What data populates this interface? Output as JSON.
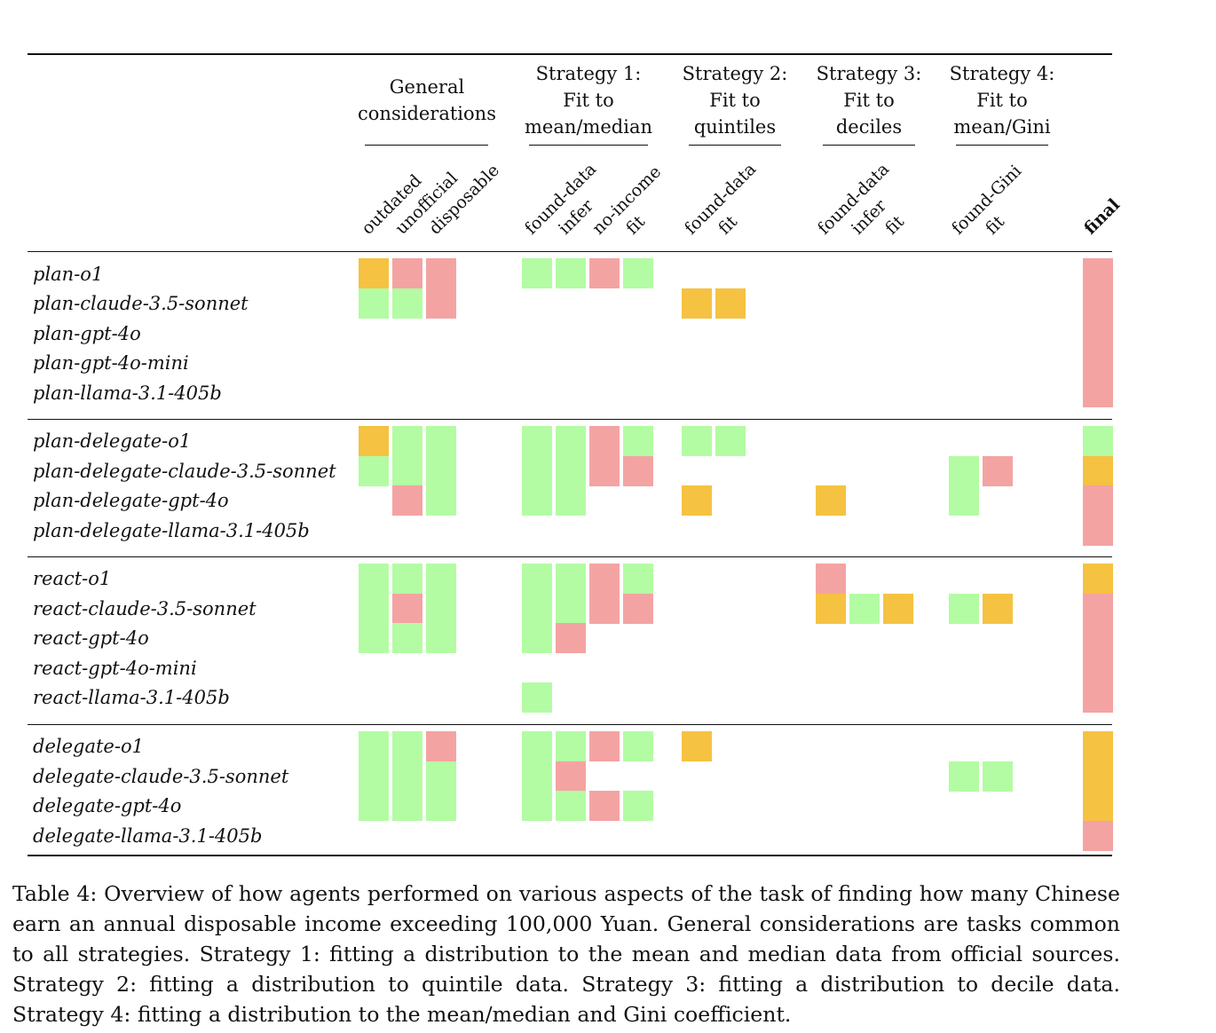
{
  "colors": {
    "success": "#b3fca3",
    "fail": "#f4a3a3",
    "partial": "#f5c242"
  },
  "groups": [
    {
      "lines": [
        "General",
        "considerations"
      ]
    },
    {
      "lines": [
        "Strategy 1:",
        "Fit to",
        "mean/median"
      ]
    },
    {
      "lines": [
        "Strategy 2:",
        "Fit to",
        "quintiles"
      ]
    },
    {
      "lines": [
        "Strategy 3:",
        "Fit to",
        "deciles"
      ]
    },
    {
      "lines": [
        "Strategy 4:",
        "Fit to",
        "mean/Gini"
      ]
    }
  ],
  "columns": [
    "outdated",
    "unofficial",
    "disposable",
    "found-data",
    "infer",
    "no-income",
    "fit",
    "found-data",
    "fit",
    "found-data",
    "infer",
    "fit",
    "found-Gini",
    "fit",
    "final"
  ],
  "blocks": [
    {
      "rows": [
        {
          "label": "plan-o1",
          "cells": [
            "partial",
            "fail",
            "fail",
            "success",
            "success",
            "fail",
            "success",
            "",
            "",
            "",
            "",
            "",
            "",
            "",
            "fail"
          ]
        },
        {
          "label": "plan-claude-3.5-sonnet",
          "cells": [
            "success",
            "success",
            "fail",
            "",
            "",
            "",
            "",
            "partial",
            "partial",
            "",
            "",
            "",
            "",
            "",
            "fail"
          ]
        },
        {
          "label": "plan-gpt-4o",
          "cells": [
            "",
            "",
            "",
            "",
            "",
            "",
            "",
            "",
            "",
            "",
            "",
            "",
            "",
            "",
            "fail"
          ]
        },
        {
          "label": "plan-gpt-4o-mini",
          "cells": [
            "",
            "",
            "",
            "",
            "",
            "",
            "",
            "",
            "",
            "",
            "",
            "",
            "",
            "",
            "fail"
          ]
        },
        {
          "label": "plan-llama-3.1-405b",
          "cells": [
            "",
            "",
            "",
            "",
            "",
            "",
            "",
            "",
            "",
            "",
            "",
            "",
            "",
            "",
            "fail"
          ]
        }
      ]
    },
    {
      "rows": [
        {
          "label": "plan-delegate-o1",
          "cells": [
            "partial",
            "success",
            "success",
            "success",
            "success",
            "fail",
            "success",
            "success",
            "success",
            "",
            "",
            "",
            "",
            "",
            "success"
          ]
        },
        {
          "label": "plan-delegate-claude-3.5-sonnet",
          "cells": [
            "success",
            "success",
            "success",
            "success",
            "success",
            "fail",
            "fail",
            "",
            "",
            "",
            "",
            "",
            "success",
            "fail",
            "partial"
          ]
        },
        {
          "label": "plan-delegate-gpt-4o",
          "cells": [
            "",
            "fail",
            "success",
            "success",
            "success",
            "",
            "",
            "partial",
            "",
            "partial",
            "",
            "",
            "success",
            "",
            "fail"
          ]
        },
        {
          "label": "plan-delegate-llama-3.1-405b",
          "cells": [
            "",
            "",
            "",
            "",
            "",
            "",
            "",
            "",
            "",
            "",
            "",
            "",
            "",
            "",
            "fail"
          ]
        }
      ]
    },
    {
      "rows": [
        {
          "label": "react-o1",
          "cells": [
            "success",
            "success",
            "success",
            "success",
            "success",
            "fail",
            "success",
            "",
            "",
            "fail",
            "",
            "",
            "",
            "",
            "partial"
          ]
        },
        {
          "label": "react-claude-3.5-sonnet",
          "cells": [
            "success",
            "fail",
            "success",
            "success",
            "success",
            "fail",
            "fail",
            "",
            "",
            "partial",
            "success",
            "partial",
            "success",
            "partial",
            "fail"
          ]
        },
        {
          "label": "react-gpt-4o",
          "cells": [
            "success",
            "success",
            "success",
            "success",
            "fail",
            "",
            "",
            "",
            "",
            "",
            "",
            "",
            "",
            "",
            "fail"
          ]
        },
        {
          "label": "react-gpt-4o-mini",
          "cells": [
            "",
            "",
            "",
            "",
            "",
            "",
            "",
            "",
            "",
            "",
            "",
            "",
            "",
            "",
            "fail"
          ]
        },
        {
          "label": "react-llama-3.1-405b",
          "cells": [
            "",
            "",
            "",
            "success",
            "",
            "",
            "",
            "",
            "",
            "",
            "",
            "",
            "",
            "",
            "fail"
          ]
        }
      ]
    },
    {
      "rows": [
        {
          "label": "delegate-o1",
          "cells": [
            "success",
            "success",
            "fail",
            "success",
            "success",
            "fail",
            "success",
            "partial",
            "",
            "",
            "",
            "",
            "",
            "",
            "partial"
          ]
        },
        {
          "label": "delegate-claude-3.5-sonnet",
          "cells": [
            "success",
            "success",
            "success",
            "success",
            "fail",
            "",
            "",
            "",
            "",
            "",
            "",
            "",
            "success",
            "success",
            "partial"
          ]
        },
        {
          "label": "delegate-gpt-4o",
          "cells": [
            "success",
            "success",
            "success",
            "success",
            "success",
            "fail",
            "success",
            "",
            "",
            "",
            "",
            "",
            "",
            "",
            "partial"
          ]
        },
        {
          "label": "delegate-llama-3.1-405b",
          "cells": [
            "",
            "",
            "",
            "",
            "",
            "",
            "",
            "",
            "",
            "",
            "",
            "",
            "",
            "",
            "fail"
          ]
        }
      ]
    }
  ],
  "caption": "Table 4: Overview of how agents performed on various aspects of the task of finding how many Chinese earn an annual disposable income exceeding 100,000 Yuan. General considerations are tasks common to all strategies. Strategy 1: fitting a distribution to the mean and median data from official sources. Strategy 2: fitting a distribution to quintile data. Strategy 3: fitting a distribution to decile data. Strategy 4: fitting a distribution to the mean/median and Gini coefficient."
}
